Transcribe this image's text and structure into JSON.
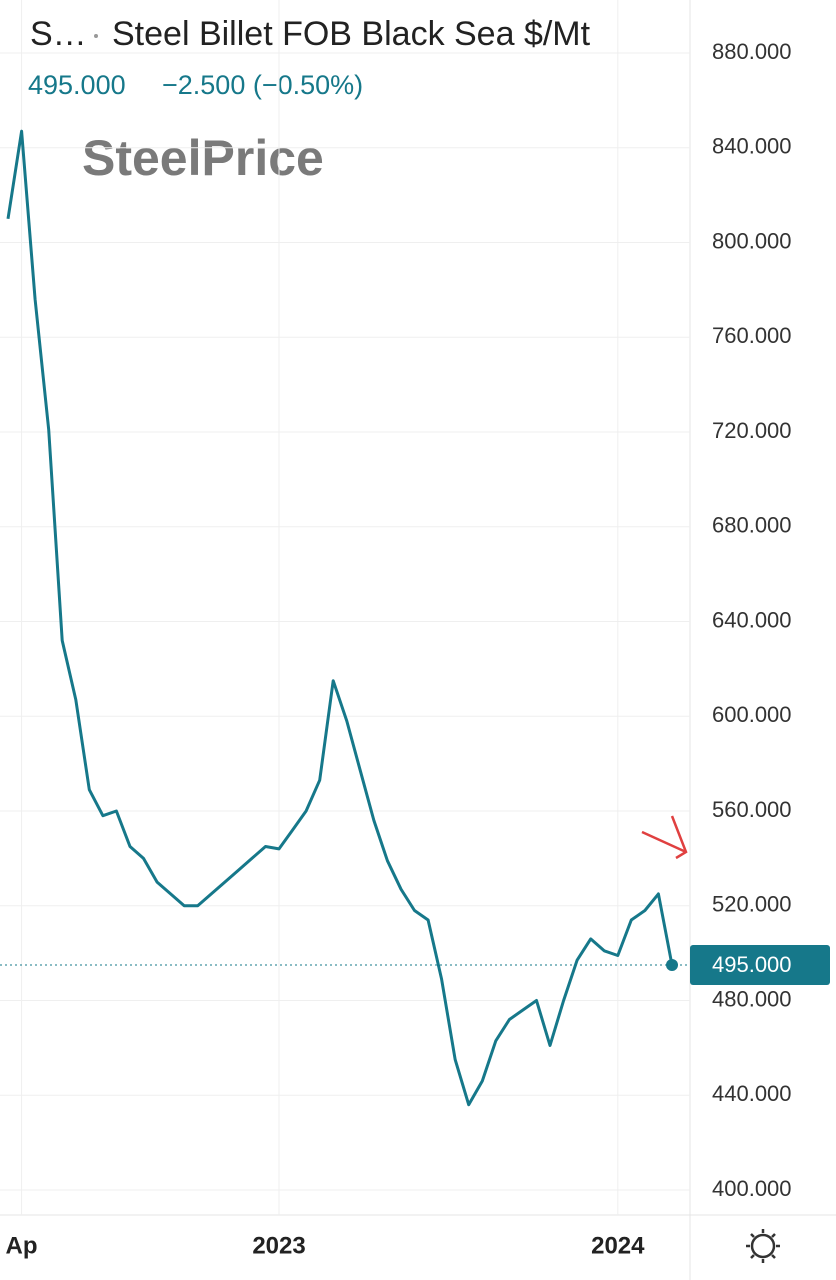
{
  "chart_data": {
    "type": "line",
    "symbol": "S…",
    "title": "Steel Billet FOB Black Sea $/Mt",
    "price": "495.000",
    "change": "−2.500 (−0.50%)",
    "watermark": "SteelPrice",
    "color": "#16788a",
    "categories": [
      null,
      "Ap",
      null,
      null,
      null,
      null,
      null,
      null,
      null,
      null,
      null,
      null,
      null,
      null,
      null,
      null,
      null,
      null,
      null,
      null,
      "2023",
      null,
      null,
      null,
      null,
      null,
      null,
      null,
      null,
      null,
      null,
      null,
      null,
      null,
      null,
      null,
      null,
      null,
      null,
      null,
      null,
      null,
      null,
      null,
      null,
      "2024",
      null,
      null,
      null,
      null
    ],
    "values": [
      810,
      847,
      776,
      721,
      632,
      607,
      569,
      558,
      560,
      545,
      540,
      530,
      525,
      520,
      520,
      525,
      530,
      535,
      540,
      545,
      544,
      552,
      560,
      573,
      615,
      598,
      577,
      556,
      539,
      527,
      518,
      514,
      489,
      455,
      436,
      446,
      463,
      472,
      476,
      480,
      461,
      480,
      497,
      506,
      501,
      499,
      514,
      518,
      525,
      495
    ],
    "last_price": {
      "value": 495,
      "label": "495.000"
    },
    "ylim": [
      400,
      880
    ],
    "yticks": [
      {
        "value": 400,
        "label": "400.000"
      },
      {
        "value": 440,
        "label": "440.000"
      },
      {
        "value": 480,
        "label": "480.000"
      },
      {
        "value": 520,
        "label": "520.000"
      },
      {
        "value": 560,
        "label": "560.000"
      },
      {
        "value": 600,
        "label": "600.000"
      },
      {
        "value": 640,
        "label": "640.000"
      },
      {
        "value": 680,
        "label": "680.000"
      },
      {
        "value": 720,
        "label": "720.000"
      },
      {
        "value": 760,
        "label": "760.000"
      },
      {
        "value": 800,
        "label": "800.000"
      },
      {
        "value": 840,
        "label": "840.000"
      },
      {
        "value": 880,
        "label": "880.000"
      }
    ],
    "grid": true
  }
}
